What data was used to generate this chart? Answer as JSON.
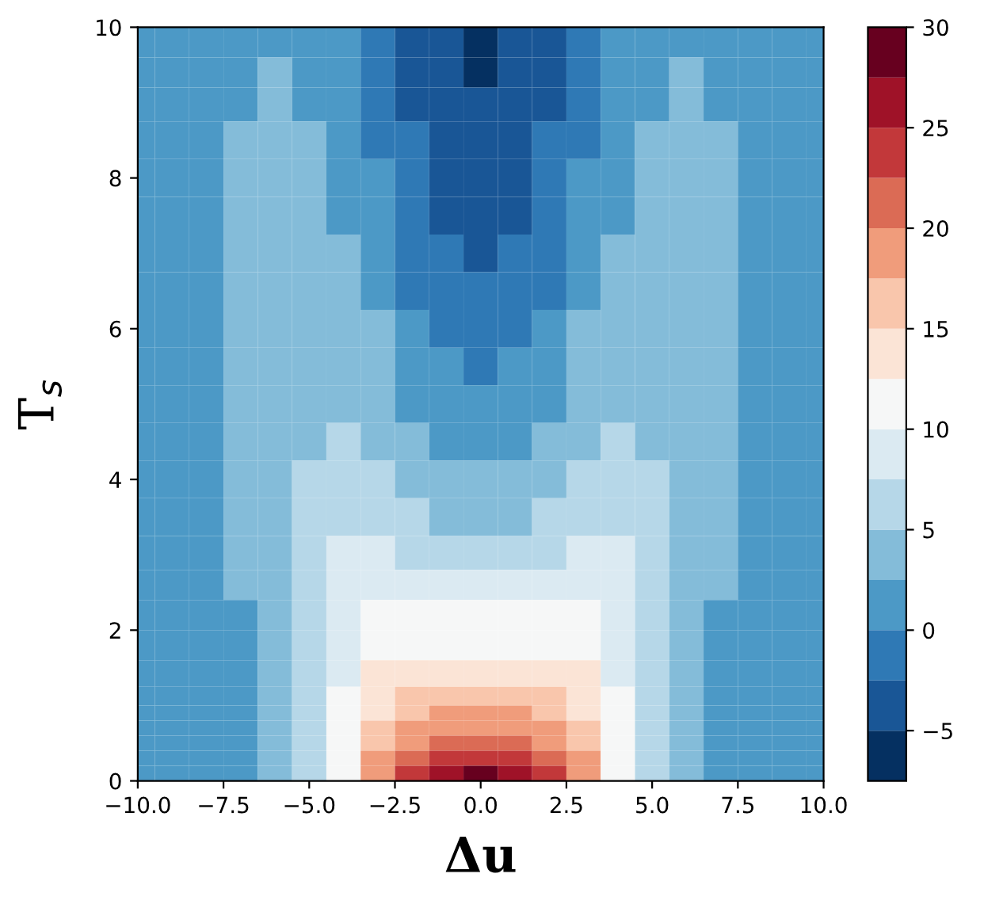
{
  "chart_data": {
    "type": "heatmap",
    "xlabel": "Δu",
    "ylabel": "T$_{s}$",
    "x": [
      -10,
      -9,
      -8,
      -7,
      -6,
      -5,
      -4,
      -3,
      -2,
      -1,
      0,
      1,
      2,
      3,
      4,
      5,
      6,
      7,
      8,
      9,
      10
    ],
    "y": [
      9.8,
      9.4,
      9.0,
      8.5,
      8.0,
      7.5,
      7.0,
      6.5,
      6.0,
      5.5,
      5.0,
      4.5,
      4.0,
      3.5,
      3.0,
      2.6,
      2.2,
      1.8,
      1.4,
      1.1,
      0.9,
      0.7,
      0.5,
      0.3,
      0.1
    ],
    "cells": [
      [
        1,
        1,
        1,
        1,
        1,
        1,
        1,
        -1,
        -4,
        -4,
        -6,
        -4,
        -4,
        -1,
        1,
        1,
        1,
        1,
        1,
        1,
        1
      ],
      [
        1,
        1,
        1,
        1,
        4,
        1,
        1,
        -1,
        -4,
        -4,
        -6,
        -4,
        -4,
        -1,
        1,
        1,
        4,
        1,
        1,
        1,
        1
      ],
      [
        1,
        1,
        1,
        1,
        4,
        1,
        1,
        -1,
        -4,
        -4,
        -4,
        -4,
        -4,
        -1,
        1,
        1,
        4,
        1,
        1,
        1,
        1
      ],
      [
        1,
        1,
        1,
        4,
        4,
        4,
        1,
        -1,
        -1,
        -4,
        -4,
        -4,
        -1,
        -1,
        1,
        4,
        4,
        4,
        1,
        1,
        1
      ],
      [
        1,
        1,
        1,
        4,
        4,
        4,
        1,
        1,
        -1,
        -4,
        -4,
        -4,
        -1,
        1,
        1,
        4,
        4,
        4,
        1,
        1,
        1
      ],
      [
        1,
        1,
        1,
        4,
        4,
        4,
        1,
        1,
        -1,
        -4,
        -4,
        -4,
        -1,
        1,
        1,
        4,
        4,
        4,
        1,
        1,
        1
      ],
      [
        1,
        1,
        1,
        4,
        4,
        4,
        4,
        1,
        -1,
        -1,
        -4,
        -1,
        -1,
        1,
        4,
        4,
        4,
        4,
        1,
        1,
        1
      ],
      [
        1,
        1,
        1,
        4,
        4,
        4,
        4,
        1,
        -1,
        -1,
        -1,
        -1,
        -1,
        1,
        4,
        4,
        4,
        4,
        1,
        1,
        1
      ],
      [
        1,
        1,
        1,
        4,
        4,
        4,
        4,
        4,
        1,
        -1,
        -1,
        -1,
        1,
        4,
        4,
        4,
        4,
        4,
        1,
        1,
        1
      ],
      [
        1,
        1,
        1,
        4,
        4,
        4,
        4,
        4,
        1,
        1,
        -1,
        1,
        1,
        4,
        4,
        4,
        4,
        4,
        1,
        1,
        1
      ],
      [
        1,
        1,
        1,
        4,
        4,
        4,
        4,
        4,
        1,
        1,
        1,
        1,
        1,
        4,
        4,
        4,
        4,
        4,
        1,
        1,
        1
      ],
      [
        1,
        1,
        1,
        4,
        4,
        4,
        6,
        4,
        4,
        1,
        1,
        1,
        4,
        4,
        6,
        4,
        4,
        4,
        1,
        1,
        1
      ],
      [
        1,
        1,
        1,
        4,
        4,
        6,
        6,
        6,
        4,
        4,
        4,
        4,
        4,
        6,
        6,
        6,
        4,
        4,
        1,
        1,
        1
      ],
      [
        1,
        1,
        1,
        4,
        4,
        6,
        6,
        6,
        6,
        4,
        4,
        4,
        6,
        6,
        6,
        6,
        4,
        4,
        1,
        1,
        1
      ],
      [
        1,
        1,
        1,
        4,
        4,
        6,
        9,
        9,
        6,
        6,
        6,
        6,
        6,
        9,
        9,
        6,
        4,
        4,
        1,
        1,
        1
      ],
      [
        1,
        1,
        1,
        4,
        4,
        6,
        9,
        9,
        9,
        9,
        9,
        9,
        9,
        9,
        9,
        6,
        4,
        4,
        1,
        1,
        1
      ],
      [
        1,
        1,
        1,
        1,
        4,
        6,
        9,
        11,
        11,
        11,
        11,
        11,
        11,
        11,
        9,
        6,
        4,
        1,
        1,
        1,
        1
      ],
      [
        1,
        1,
        1,
        1,
        4,
        6,
        9,
        11,
        11,
        11,
        11,
        11,
        11,
        11,
        9,
        6,
        4,
        1,
        1,
        1,
        1
      ],
      [
        1,
        1,
        1,
        1,
        4,
        6,
        9,
        14,
        14,
        14,
        14,
        14,
        14,
        14,
        9,
        6,
        4,
        1,
        1,
        1,
        1
      ],
      [
        1,
        1,
        1,
        1,
        4,
        6,
        11,
        14,
        16,
        16,
        16,
        16,
        16,
        14,
        11,
        6,
        4,
        1,
        1,
        1,
        1
      ],
      [
        1,
        1,
        1,
        1,
        4,
        6,
        11,
        14,
        16,
        19,
        19,
        19,
        16,
        14,
        11,
        6,
        4,
        1,
        1,
        1,
        1
      ],
      [
        1,
        1,
        1,
        1,
        4,
        6,
        11,
        16,
        19,
        19,
        19,
        19,
        19,
        16,
        11,
        6,
        4,
        1,
        1,
        1,
        1
      ],
      [
        1,
        1,
        1,
        1,
        4,
        6,
        11,
        16,
        19,
        21,
        21,
        21,
        19,
        16,
        11,
        6,
        4,
        1,
        1,
        1,
        1
      ],
      [
        1,
        1,
        1,
        1,
        4,
        6,
        11,
        19,
        21,
        24,
        24,
        24,
        21,
        19,
        11,
        6,
        4,
        1,
        1,
        1,
        1
      ],
      [
        1,
        1,
        1,
        1,
        4,
        6,
        11,
        19,
        24,
        26,
        29,
        26,
        24,
        19,
        11,
        6,
        4,
        1,
        1,
        1,
        1
      ]
    ],
    "xlim": [
      -10,
      10
    ],
    "ylim": [
      0,
      10
    ],
    "xticks": [
      {
        "value": -10,
        "label": "−10.0"
      },
      {
        "value": -7.5,
        "label": "−7.5"
      },
      {
        "value": -5,
        "label": "−5.0"
      },
      {
        "value": -2.5,
        "label": "−2.5"
      },
      {
        "value": 0,
        "label": "0.0"
      },
      {
        "value": 2.5,
        "label": "2.5"
      },
      {
        "value": 5,
        "label": "5.0"
      },
      {
        "value": 7.5,
        "label": "7.5"
      },
      {
        "value": 10,
        "label": "10.0"
      }
    ],
    "yticks": [
      0,
      2,
      4,
      6,
      8,
      10
    ],
    "clim": [
      -7.5,
      30
    ],
    "cticks": [
      {
        "value": -5,
        "label": "−5"
      },
      0,
      5,
      10,
      15,
      20,
      25,
      30
    ],
    "grid": false,
    "legend": false
  }
}
